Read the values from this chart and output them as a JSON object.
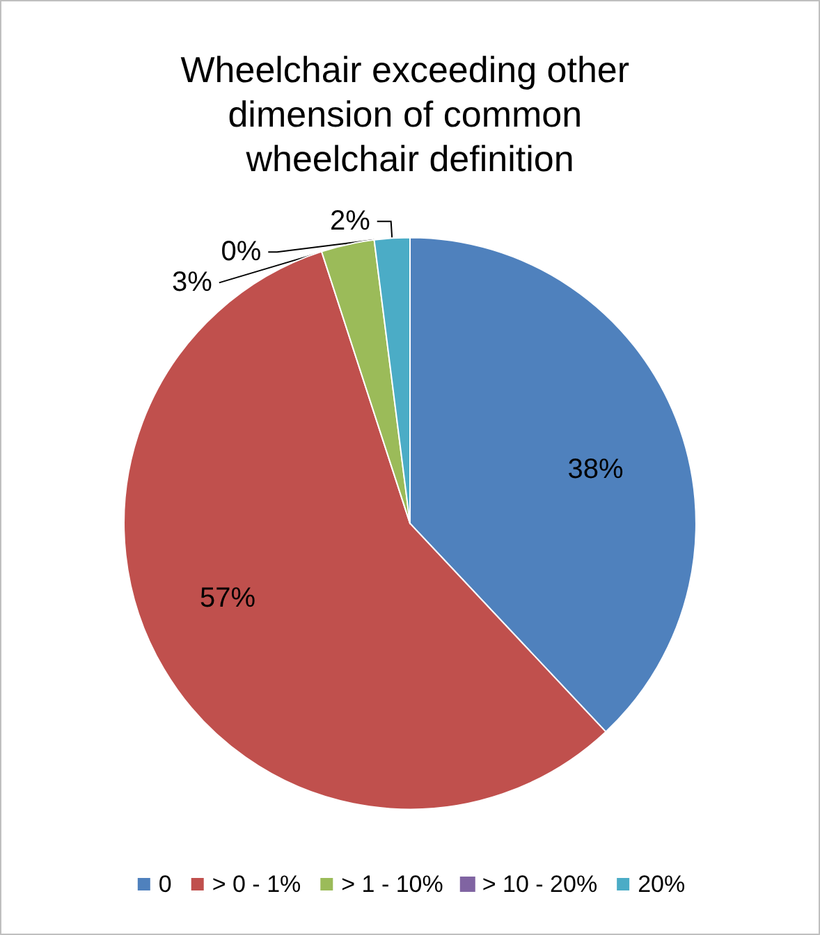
{
  "chart_data": {
    "type": "pie",
    "title": "Wheelchair exceeding other dimension of common wheelchair definition",
    "categories": [
      "0",
      "> 0 - 1%",
      "> 1 - 10%",
      "> 10 - 20%",
      "20%"
    ],
    "values": [
      38,
      57,
      3,
      0,
      2
    ],
    "colors": [
      "#4f81bd",
      "#c0504d",
      "#9bbb59",
      "#8064a2",
      "#4bacc6"
    ],
    "value_labels": [
      "38%",
      "57%",
      "3%",
      "0%",
      "2%"
    ],
    "legend": "bottom"
  }
}
